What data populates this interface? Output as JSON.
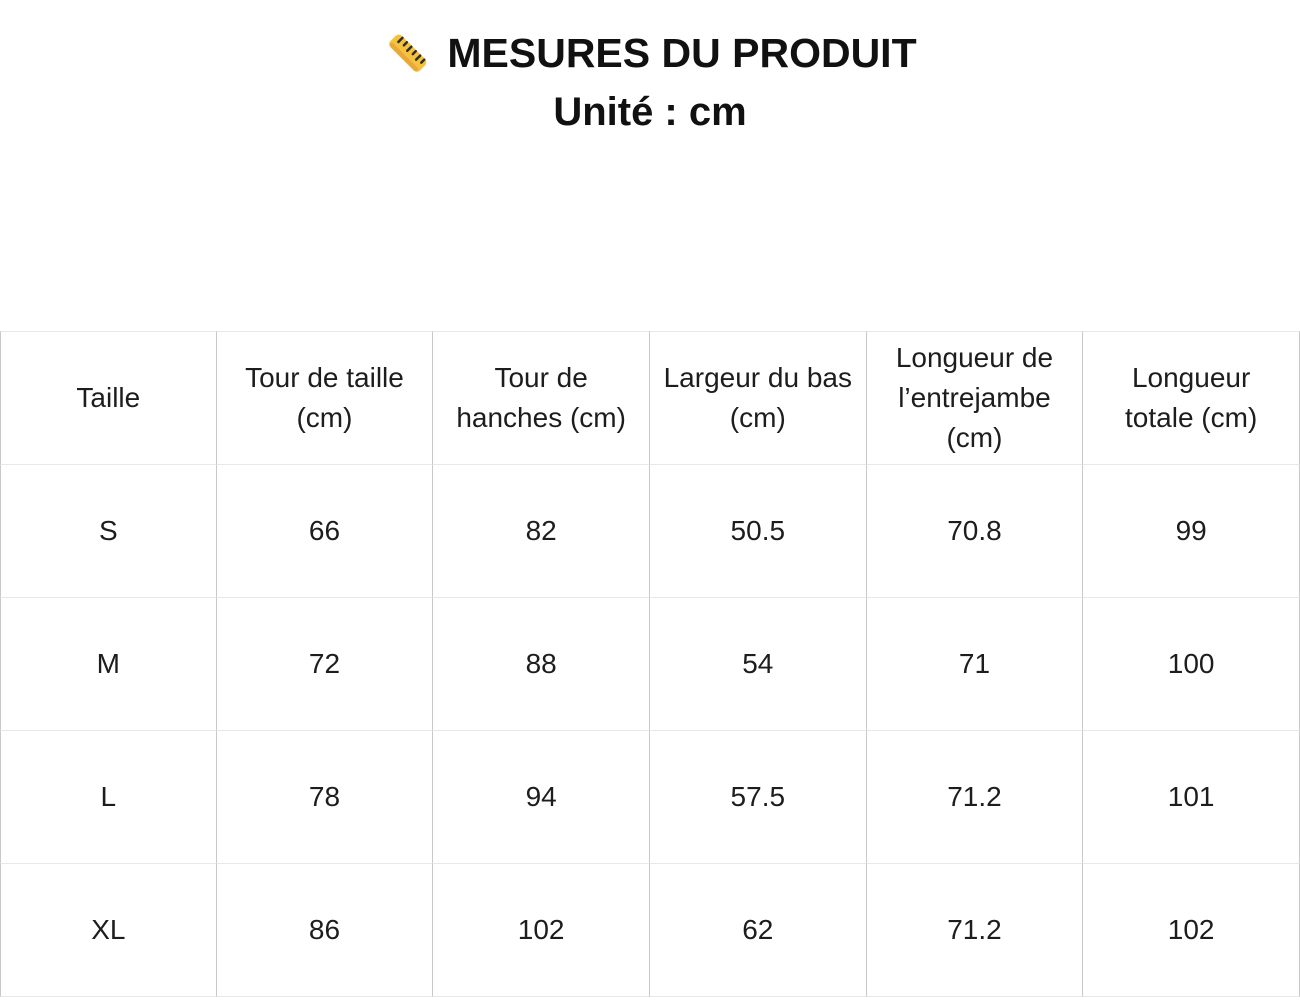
{
  "header": {
    "icon": "ruler-icon",
    "title": "MESURES DU PRODUIT",
    "subtitle": "Unité : cm"
  },
  "table": {
    "columns": [
      "Taille",
      "Tour de taille (cm)",
      "Tour de hanches (cm)",
      "Largeur du bas (cm)",
      "Longueur de l’entrejambe (cm)",
      "Longueur totale (cm)"
    ],
    "rows": [
      {
        "size": "S",
        "values": [
          "66",
          "82",
          "50.5",
          "70.8",
          "99"
        ]
      },
      {
        "size": "M",
        "values": [
          "72",
          "88",
          "54",
          "71",
          "100"
        ]
      },
      {
        "size": "L",
        "values": [
          "78",
          "94",
          "57.5",
          "71.2",
          "101"
        ]
      },
      {
        "size": "XL",
        "values": [
          "86",
          "102",
          "62",
          "71.2",
          "102"
        ]
      }
    ]
  },
  "colors": {
    "background": "#ffffff",
    "title_text": "#111111",
    "table_text": "#1d1d1d",
    "vertical_border": "#c9c9c9",
    "horizontal_border": "#e8e8e8",
    "ruler_fill": "#f6c13c",
    "ruler_shade": "#e9a83a",
    "ruler_ticks": "#2b2f33"
  },
  "chart_data": {
    "type": "table",
    "title": "MESURES DU PRODUIT",
    "subtitle": "Unité : cm",
    "unit": "cm",
    "columns": [
      "Taille",
      "Tour de taille (cm)",
      "Tour de hanches (cm)",
      "Largeur du bas (cm)",
      "Longueur de l’entrejambe (cm)",
      "Longueur totale (cm)"
    ],
    "rows": [
      [
        "S",
        66,
        82,
        50.5,
        70.8,
        99
      ],
      [
        "M",
        72,
        88,
        54,
        71,
        100
      ],
      [
        "L",
        78,
        94,
        57.5,
        71.2,
        101
      ],
      [
        "XL",
        86,
        102,
        62,
        71.2,
        102
      ]
    ]
  }
}
